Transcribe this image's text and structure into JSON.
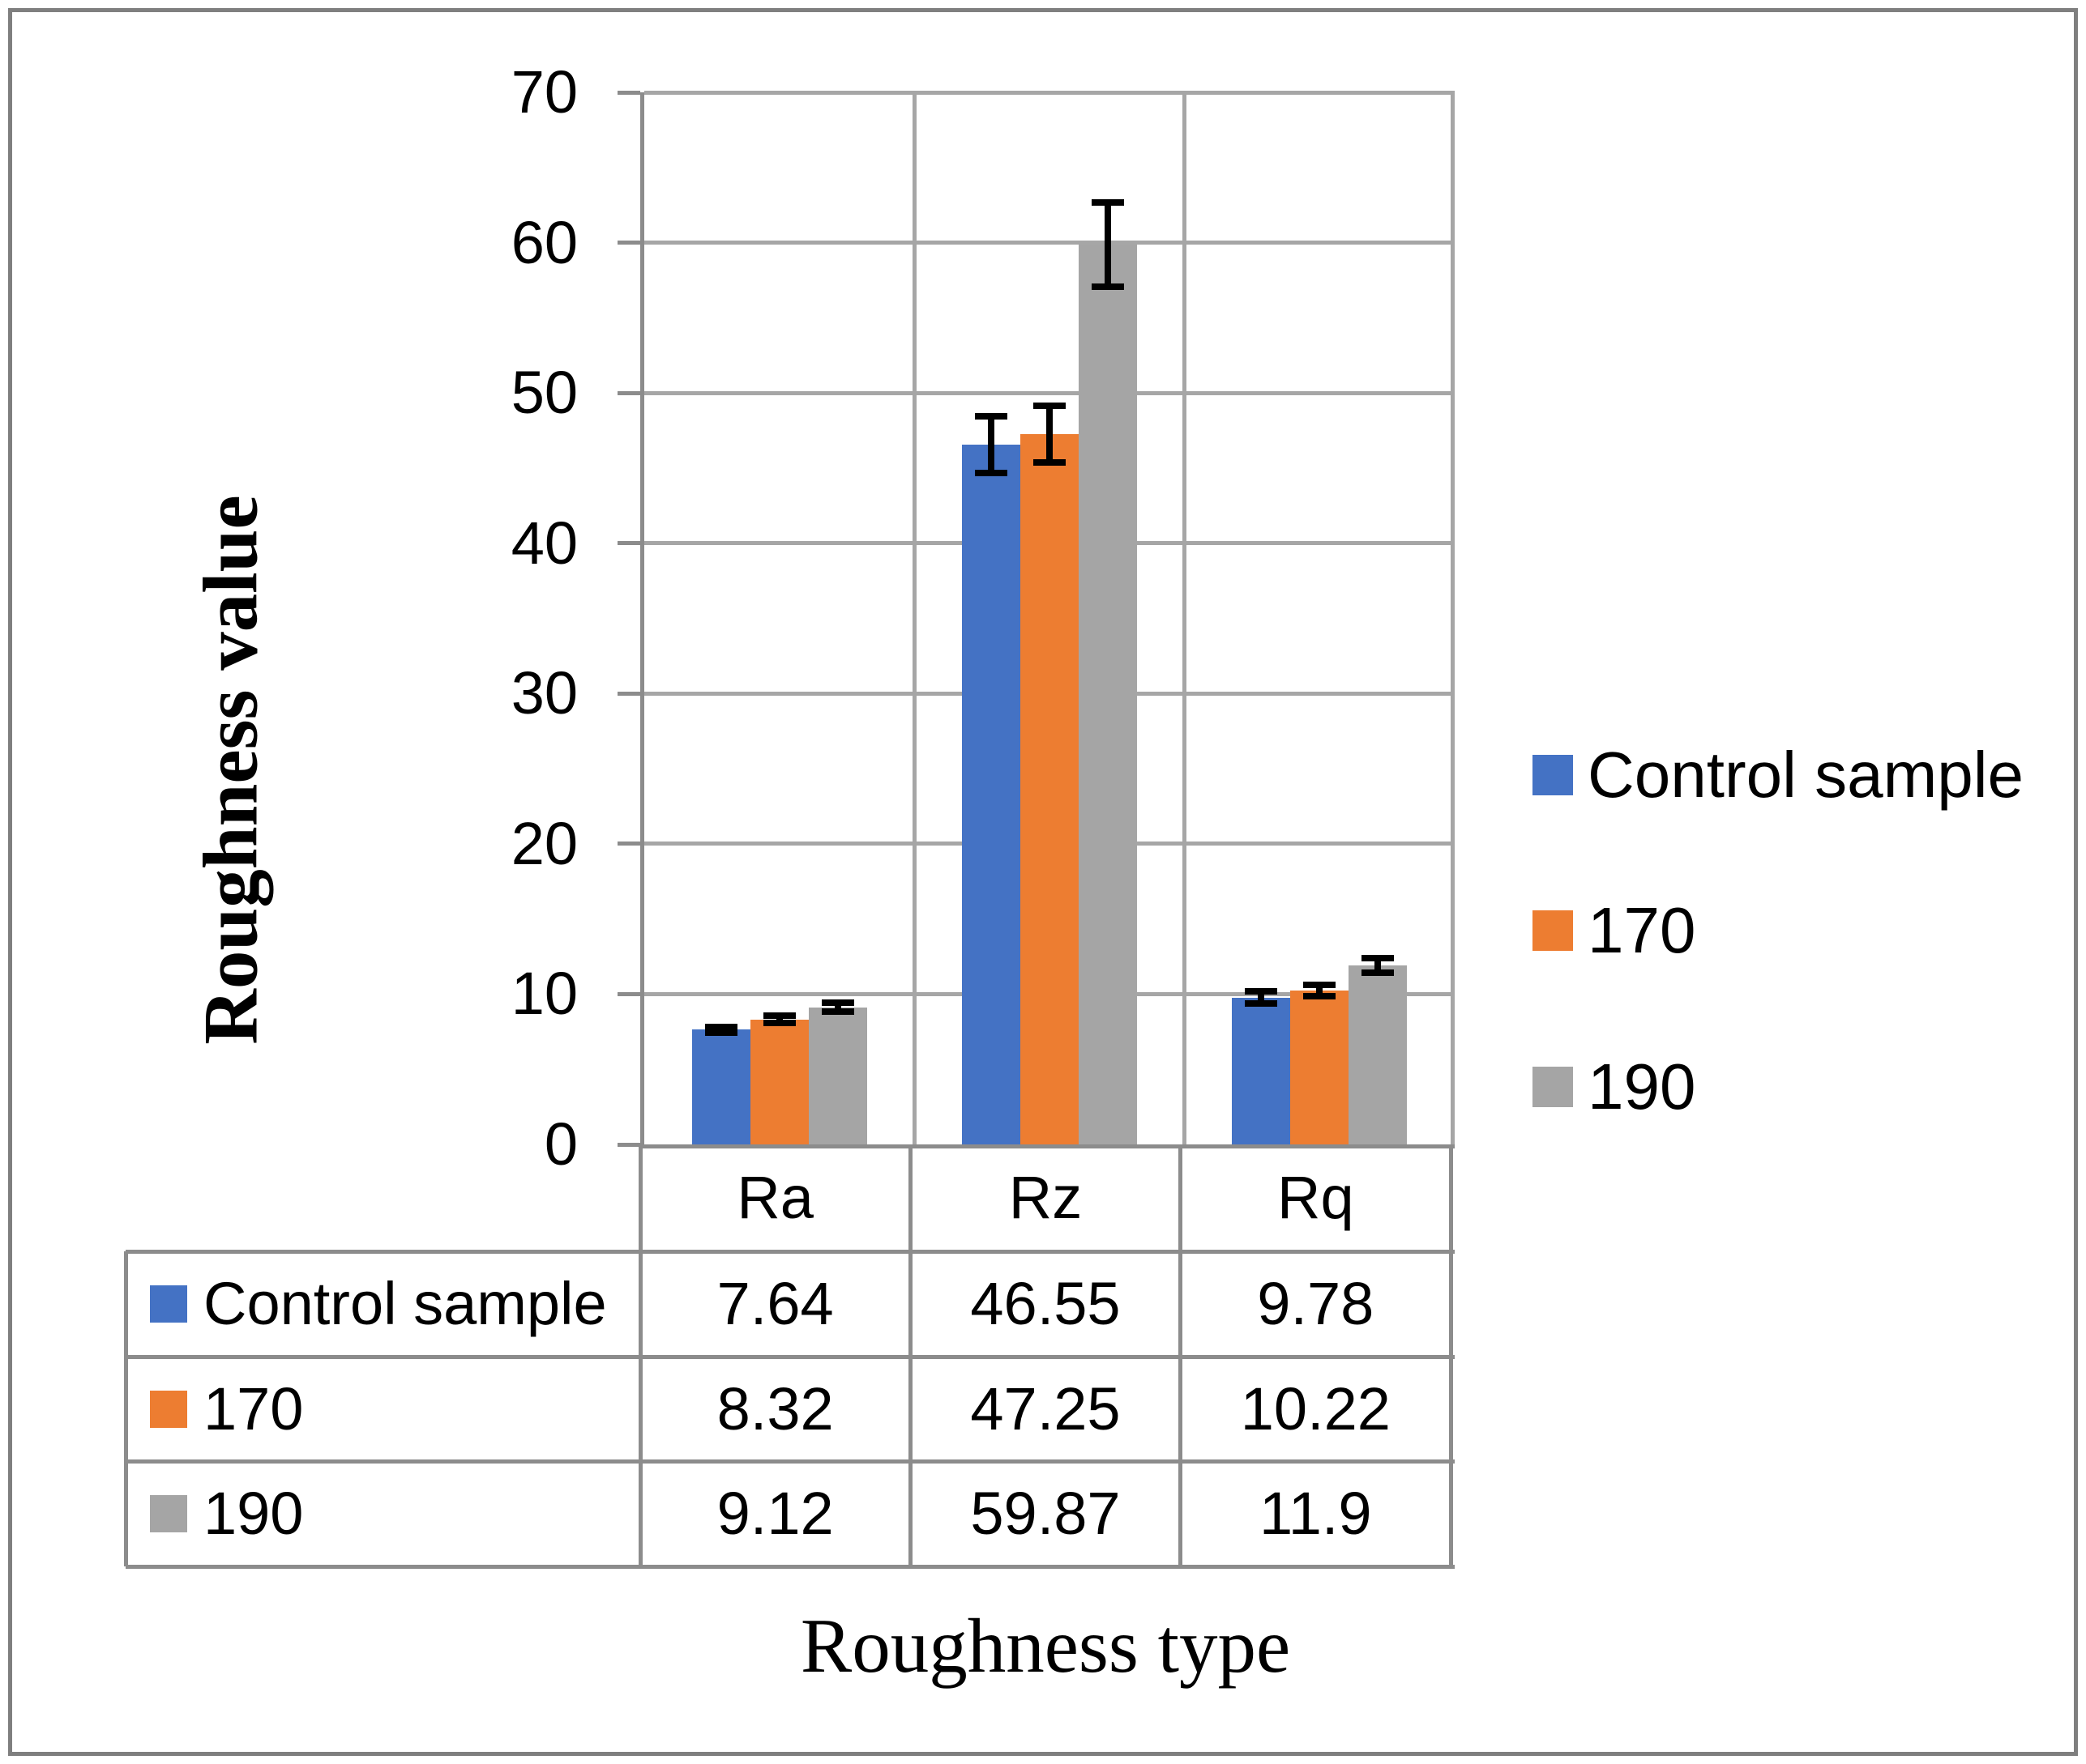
{
  "chart_data": {
    "type": "bar",
    "title": "",
    "xlabel": "Roughness type",
    "ylabel": "Roughness value",
    "categories": [
      "Ra",
      "Rz",
      "Rq"
    ],
    "series": [
      {
        "name": "Control sample",
        "color": "#4472C4",
        "values": [
          7.64,
          46.55,
          9.78
        ],
        "errors": [
          0.4,
          2.1,
          0.6
        ]
      },
      {
        "name": "170",
        "color": "#ED7D31",
        "values": [
          8.32,
          47.25,
          10.22
        ],
        "errors": [
          0.45,
          2.1,
          0.6
        ]
      },
      {
        "name": "190",
        "color": "#A5A5A5",
        "values": [
          9.12,
          59.87,
          11.9
        ],
        "errors": [
          0.5,
          3.0,
          0.7
        ]
      }
    ],
    "ylim": [
      0,
      70
    ],
    "yticks": [
      0,
      10,
      20,
      30,
      40,
      50,
      60,
      70
    ],
    "grid": true,
    "legend_position": "right",
    "data_table_shown": true
  },
  "colors": {
    "gridline": "#A6A6A6",
    "axis": "#8C8C8C",
    "table_border": "#8C8C8C",
    "error_bar": "#000000",
    "frame": "#7F7F7F"
  }
}
